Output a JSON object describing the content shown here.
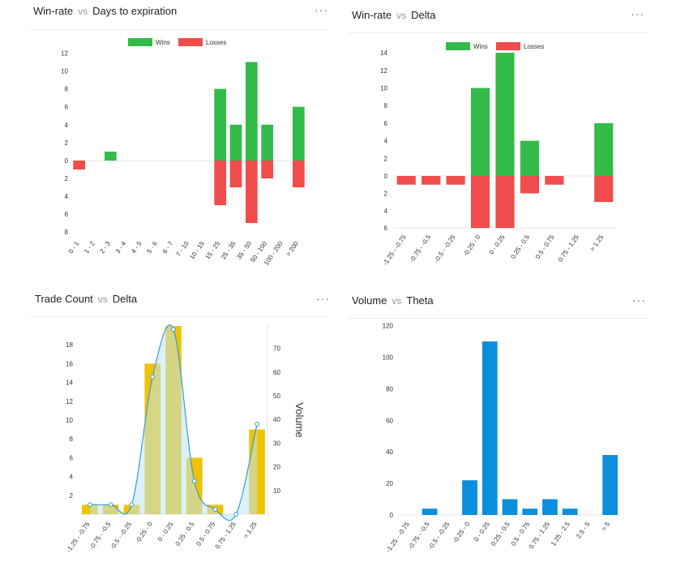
{
  "panels": [
    {
      "title_main": "Win-rate",
      "title_vs": "vs",
      "title_dim": "Days to expiration",
      "menu": "···"
    },
    {
      "title_main": "Win-rate",
      "title_vs": "vs",
      "title_dim": "Delta",
      "menu": "···"
    },
    {
      "title_main": "Trade Count",
      "title_vs": "vs",
      "title_dim": "Delta",
      "menu": "···"
    },
    {
      "title_main": "Volume",
      "title_vs": "vs",
      "title_dim": "Theta",
      "menu": "···"
    }
  ],
  "colors": {
    "wins": "#33bb4a",
    "losses": "#f04c4c",
    "count": "#efc300",
    "volume_area": "#bde3f3",
    "volume_line": "#3b9bd0",
    "blue": "#0b8fdb"
  },
  "chart_data": [
    {
      "type": "bar",
      "categories": [
        "0 - 1",
        "1 - 2",
        "2 - 3",
        "3 - 4",
        "4 - 5",
        "5 - 6",
        "6 - 7",
        "7 - 10",
        "10 - 15",
        "15 - 25",
        "25 - 35",
        "35 - 50",
        "50 - 100",
        "100 - 200",
        "> 200"
      ],
      "series": [
        {
          "name": "Wins",
          "values": [
            0,
            0,
            1,
            0,
            0,
            0,
            0,
            0,
            0,
            8,
            4,
            11,
            4,
            0,
            6
          ]
        },
        {
          "name": "Losses",
          "values": [
            1,
            0,
            0,
            0,
            0,
            0,
            0,
            0,
            0,
            5,
            3,
            7,
            2,
            0,
            3
          ]
        }
      ],
      "yticks_up": [
        "2",
        "4",
        "6",
        "8",
        "10",
        "12"
      ],
      "yticks_down": [
        "2",
        "4",
        "6",
        "8"
      ],
      "yzero": "0",
      "legend": "top-center"
    },
    {
      "type": "bar",
      "categories": [
        "-1.25 - -0.75",
        "-0.75 - -0.5",
        "-0.5 - -0.25",
        "-0.25 - 0",
        "0 - 0.25",
        "0.25 - 0.5",
        "0.5 - 0.75",
        "0.75 - 1.25",
        "> 1.25"
      ],
      "series": [
        {
          "name": "Wins",
          "values": [
            0,
            0,
            0,
            10,
            14,
            4,
            0,
            0,
            6
          ]
        },
        {
          "name": "Losses",
          "values": [
            1,
            1,
            1,
            6,
            6,
            2,
            1,
            0,
            3
          ]
        }
      ],
      "yticks_up": [
        "2",
        "4",
        "6",
        "8",
        "10",
        "12",
        "14"
      ],
      "yticks_down": [
        "2",
        "4",
        "6"
      ],
      "yzero": "0",
      "legend": "top-center"
    },
    {
      "type": "bar",
      "categories": [
        "-1.25 - -0.75",
        "-0.75 - -0.5",
        "-0.5 - -0.25",
        "-0.25 - 0",
        "0 - 0.25",
        "0.25 - 0.5",
        "0.5 - 0.75",
        "0.75 - 1.25",
        "> 1.25"
      ],
      "series": [
        {
          "name": "Trade Count",
          "values": [
            1,
            1,
            1,
            16,
            20,
            6,
            1,
            0,
            9
          ]
        },
        {
          "name": "Volume",
          "values": [
            4,
            4,
            4,
            58,
            78,
            14,
            2,
            0,
            38
          ]
        }
      ],
      "yticks": [
        "2",
        "4",
        "6",
        "8",
        "10",
        "12",
        "14",
        "16",
        "18"
      ],
      "y2ticks": [
        "10",
        "20",
        "30",
        "40",
        "50",
        "60",
        "70"
      ],
      "y2label": "Volume"
    },
    {
      "type": "bar",
      "categories": [
        "-1.25 - -0.75",
        "-0.75 - -0.5",
        "-0.5 - -0.25",
        "-0.25 - 0",
        "0 - 0.25",
        "0.25 - 0.5",
        "0.5 - 0.75",
        "0.75 - 1.25",
        "1.25 - 2.5",
        "2.5 - 5",
        "> 5"
      ],
      "values": [
        0,
        4,
        0,
        22,
        110,
        10,
        4,
        10,
        4,
        0,
        38
      ],
      "yticks": [
        "0",
        "20",
        "40",
        "60",
        "80",
        "100",
        "120"
      ]
    }
  ]
}
